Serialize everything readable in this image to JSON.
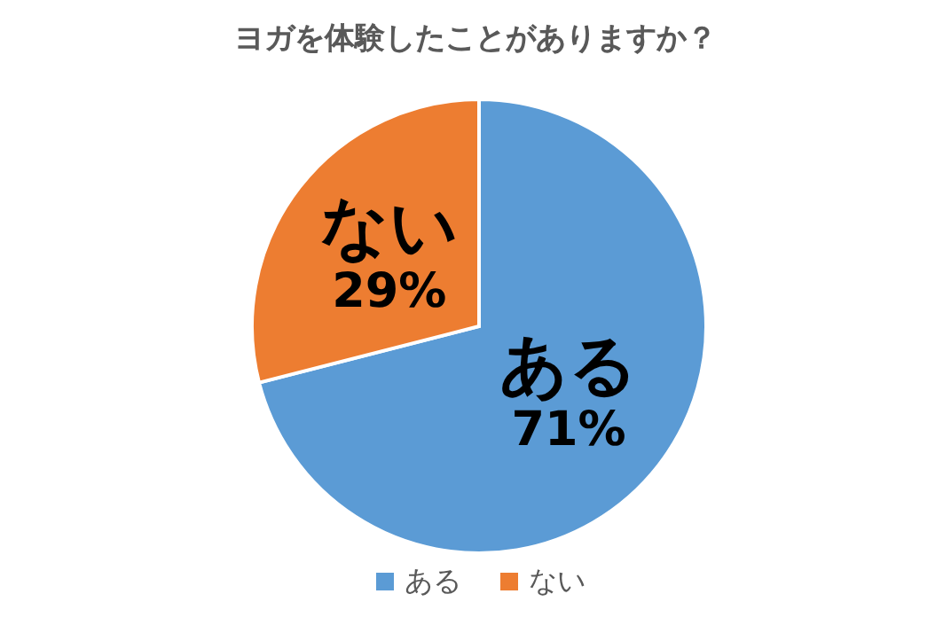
{
  "chart_data": {
    "type": "pie",
    "title": "ヨガを体験したことがありますか？",
    "categories": [
      "ある",
      "ない"
    ],
    "values": [
      71,
      29
    ],
    "colors": [
      "#5b9bd5",
      "#ed7d31"
    ],
    "value_labels": [
      "71%",
      "29%"
    ],
    "legend": "bottom"
  }
}
